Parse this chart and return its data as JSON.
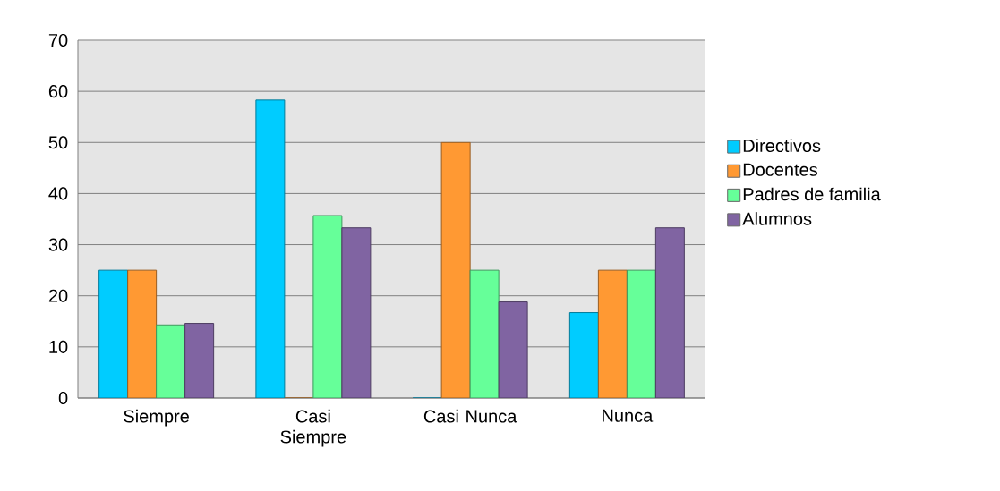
{
  "chart_data": {
    "type": "bar",
    "categories": [
      "Siempre",
      "Casi Siempre",
      "Casi Nunca",
      "Nunca"
    ],
    "series": [
      {
        "name": "Directivos",
        "color": "#00ccff",
        "values": [
          25,
          58.3,
          0,
          16.7
        ]
      },
      {
        "name": "Docentes",
        "color": "#ff9933",
        "values": [
          25,
          0,
          50,
          25
        ]
      },
      {
        "name": "Padres de familia",
        "color": "#66ff99",
        "values": [
          14.3,
          35.7,
          25,
          25
        ]
      },
      {
        "name": "Alumnos",
        "color": "#8064a2",
        "values": [
          14.6,
          33.3,
          18.8,
          33.3
        ]
      }
    ],
    "ylim": [
      0,
      70
    ],
    "yticks": [
      0,
      10,
      20,
      30,
      40,
      50,
      60,
      70
    ],
    "grid": "y",
    "legend": "right"
  }
}
